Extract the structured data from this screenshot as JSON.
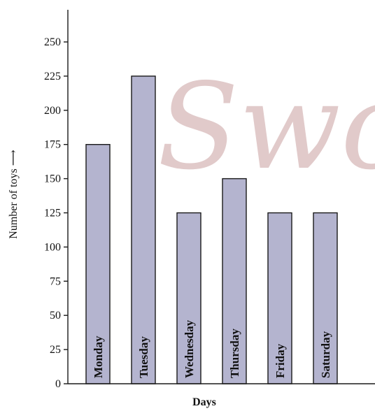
{
  "watermark": "Swot",
  "chart_data": {
    "type": "bar",
    "categories": [
      "Monday",
      "Tuesday",
      "Wednesday",
      "Thursday",
      "Friday",
      "Saturday"
    ],
    "values": [
      175,
      225,
      125,
      150,
      125,
      125
    ],
    "xlabel": "Days",
    "ylabel": "Number of toys ⟶",
    "ylim": [
      0,
      250
    ],
    "yticks": [
      "0",
      "25",
      "50",
      "75",
      "100",
      "125",
      "150",
      "175",
      "200",
      "225",
      "250"
    ],
    "bar_color": "#b4b4cf",
    "grid": false,
    "category_labels_inside_bars": true
  }
}
